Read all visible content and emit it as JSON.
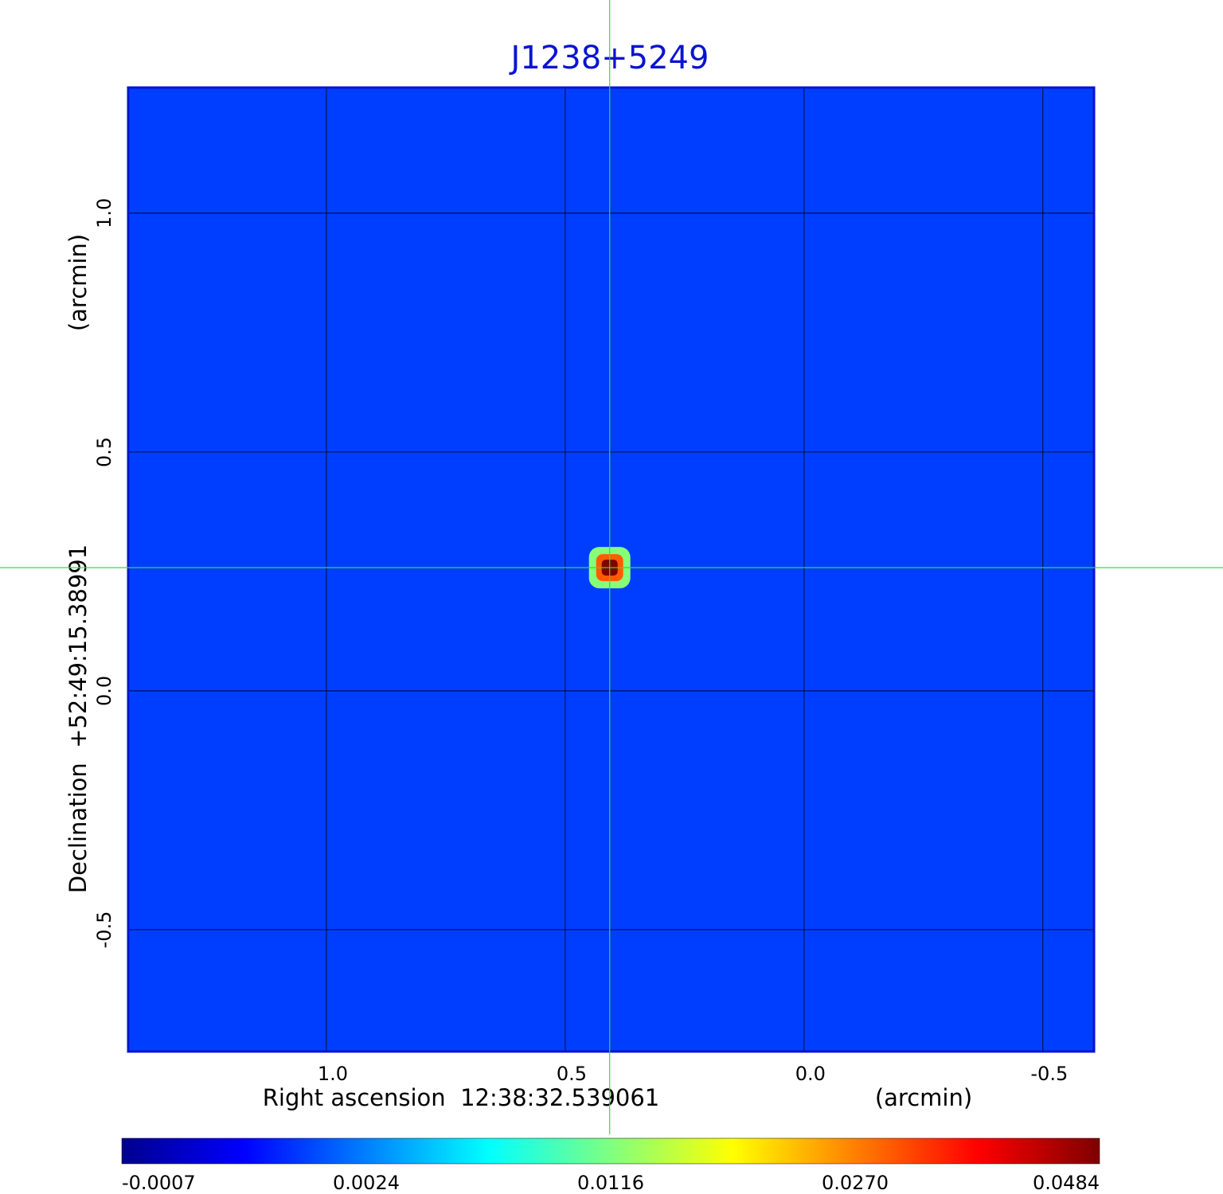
{
  "chart_data": {
    "type": "heatmap",
    "title": "J1238+5249",
    "x_label": "Right ascension  12:38:32.539061",
    "x_unit": "(arcmin)",
    "y_label": "Declination  +52:49:15.38991",
    "y_unit": "(arcmin)",
    "xlim": [
      1.415,
      -0.607
    ],
    "ylim": [
      -0.755,
      1.263
    ],
    "xticks": [
      {
        "value": 1,
        "label": "1.0"
      },
      0.5,
      {
        "value": 0,
        "label": "0.0"
      },
      -0.5
    ],
    "yticks": [
      {
        "value": 1,
        "label": "1.0"
      },
      0.5,
      {
        "value": 0,
        "label": "0.0"
      },
      -0.5
    ],
    "grid": true,
    "background_level": 0.0016,
    "source": {
      "x": 0.407,
      "y": 0.258,
      "levels": [
        0.012,
        0.03,
        0.0484
      ]
    },
    "colorbar_ticks": [
      -0.0007,
      0.0024,
      0.0116,
      {
        "value": 0.027,
        "label": "0.0270"
      },
      0.0484
    ]
  }
}
